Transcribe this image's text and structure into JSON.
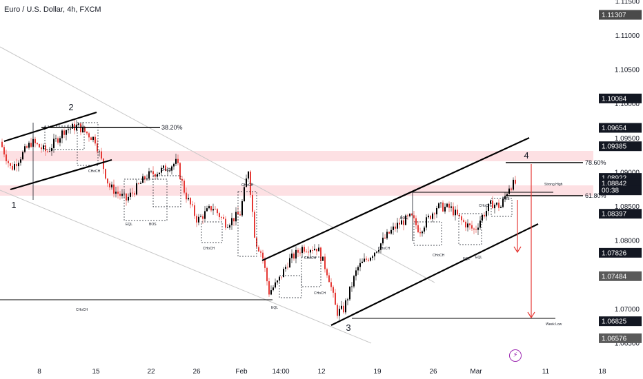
{
  "header": {
    "title": "Euro / U.S. Dollar, 4h, FXCM"
  },
  "chart_data": {
    "type": "candlestick",
    "title": "Euro / U.S. Dollar, 4h, FXCM",
    "ylim": [
      1.0645,
      1.12
    ],
    "y_ticks": [
      "1.11500",
      "1.11000",
      "1.10500",
      "1.10000",
      "1.09500",
      "1.09000",
      "1.08500",
      "1.08000",
      "1.07500",
      "1.07000",
      "1.06500"
    ],
    "x_ticks": [
      "8",
      "15",
      "22",
      "26",
      "Feb",
      "14:00",
      "12",
      "19",
      "26",
      "Mar",
      "11",
      "18"
    ],
    "price_tags": [
      {
        "label": "1.11307",
        "value": 1.11307,
        "color": "#4a4a4a"
      },
      {
        "label": "1.10084",
        "value": 1.10084,
        "color": "#131722"
      },
      {
        "label": "1.09654",
        "value": 1.09654,
        "color": "#131722"
      },
      {
        "label": "1.09385",
        "value": 1.09385,
        "color": "#131722"
      },
      {
        "label": "1.08922",
        "value": 1.08922,
        "color": "#131722"
      },
      {
        "label": "1.08842",
        "value": 1.08842,
        "color": "#131722"
      },
      {
        "label": "00:38",
        "value": 1.0874,
        "color": "#131722"
      },
      {
        "label": "1.08397",
        "value": 1.08397,
        "color": "#131722"
      },
      {
        "label": "1.07826",
        "value": 1.07826,
        "color": "#131722"
      },
      {
        "label": "1.07484",
        "value": 1.07484,
        "color": "#5a5a5a"
      },
      {
        "label": "1.06825",
        "value": 1.06825,
        "color": "#131722"
      },
      {
        "label": "1.06576",
        "value": 1.06576,
        "color": "#5a5a5a"
      }
    ],
    "fib_levels": [
      {
        "label": "38.20%"
      },
      {
        "label": "78.60%"
      },
      {
        "label": "61.80%"
      }
    ],
    "wave_labels": [
      "1",
      "2",
      "3",
      "4"
    ],
    "annotations": {
      "choch_big": "CHoCH",
      "choch_small": "CHoCH",
      "bos": "BOS",
      "eql": "EQL",
      "strong_high": "Strong High",
      "weak_low": "Week Low"
    },
    "colors": {
      "up": "#000000",
      "down": "#e53935",
      "zone": "#fde0e3",
      "arrow": "#e53935",
      "logo": "#9c27b0"
    }
  }
}
